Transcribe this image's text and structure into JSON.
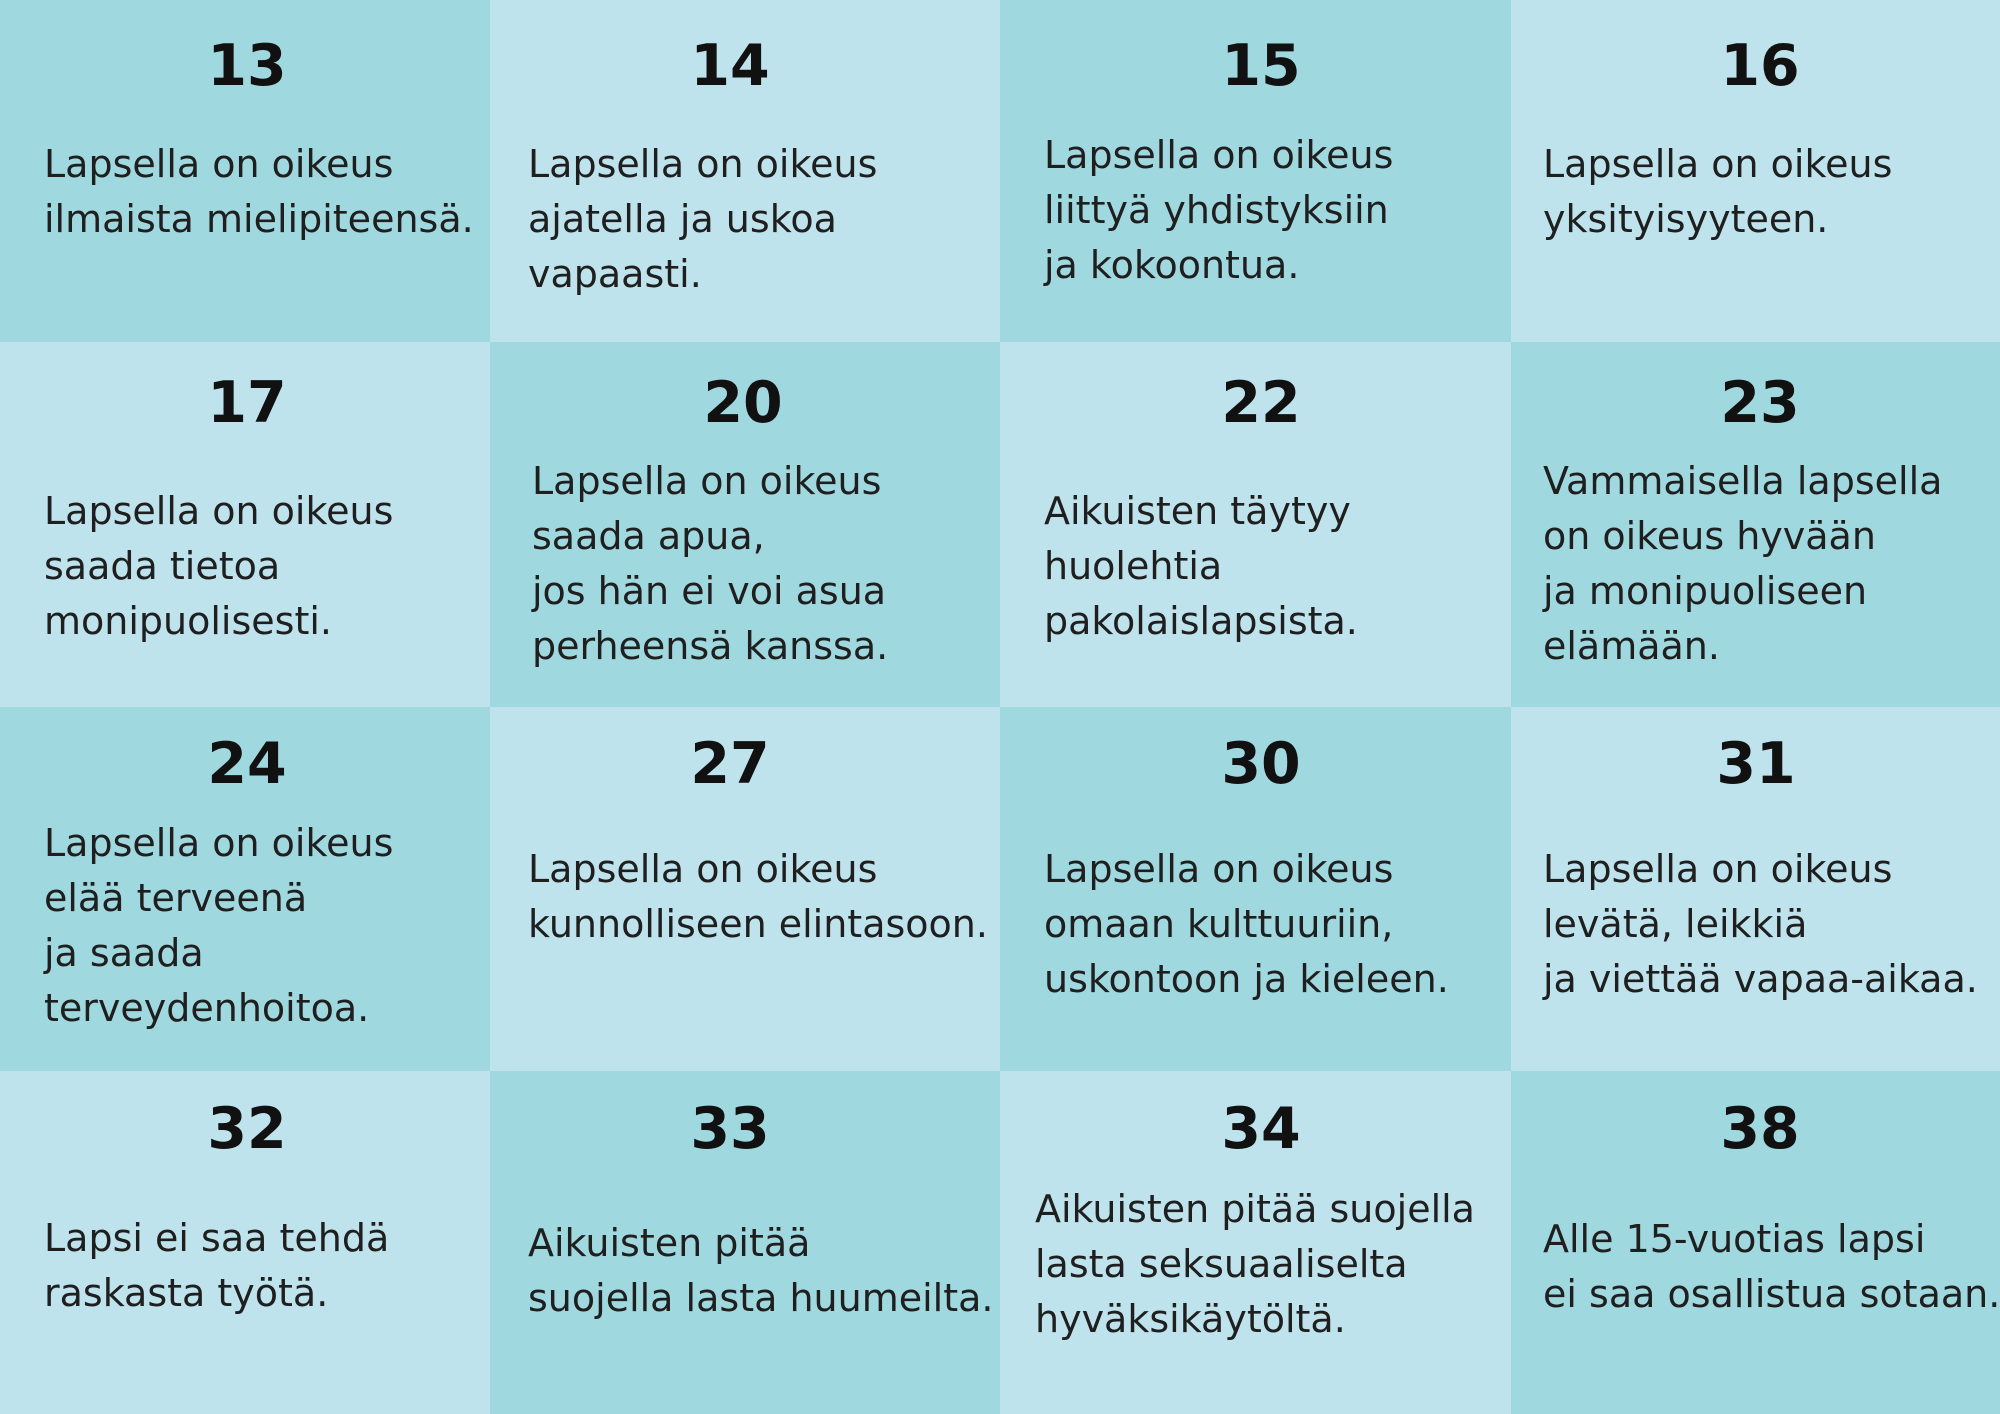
{
  "articles": [
    {
      "number": "13",
      "lines": [
        "Lapsella on oikeus",
        "ilmaista mielipiteensä."
      ]
    },
    {
      "number": "14",
      "lines": [
        "Lapsella on oikeus",
        "ajatella ja uskoa",
        "vapaasti."
      ]
    },
    {
      "number": "15",
      "lines": [
        "Lapsella on oikeus",
        "liittyä yhdistyksiin",
        "ja kokoontua."
      ]
    },
    {
      "number": "16",
      "lines": [
        "Lapsella on oikeus",
        "yksityisyyteen."
      ]
    },
    {
      "number": "17",
      "lines": [
        "Lapsella on oikeus",
        "saada tietoa",
        "monipuolisesti."
      ]
    },
    {
      "number": "20",
      "lines": [
        "Lapsella on oikeus",
        "saada apua,",
        "jos hän ei voi asua",
        "perheensä kanssa."
      ]
    },
    {
      "number": "22",
      "lines": [
        "Aikuisten täytyy",
        "huolehtia",
        "pakolaislapsista."
      ]
    },
    {
      "number": "23",
      "lines": [
        "Vammaisella lapsella",
        "on oikeus hyvään",
        "ja monipuoliseen",
        "elämään."
      ]
    },
    {
      "number": "24",
      "lines": [
        "Lapsella on oikeus",
        "elää terveenä",
        "ja saada",
        "terveydenhoitoa."
      ]
    },
    {
      "number": "27",
      "lines": [
        "Lapsella on oikeus",
        "kunnolliseen elintasoon."
      ]
    },
    {
      "number": "30",
      "lines": [
        "Lapsella on oikeus",
        "omaan kulttuuriin,",
        "uskontoon ja kieleen."
      ]
    },
    {
      "number": "31",
      "lines": [
        "Lapsella on oikeus",
        "levätä, leikkiä",
        "ja viettää vapaa-aikaa."
      ]
    },
    {
      "number": "32",
      "lines": [
        "Lapsi ei saa tehdä",
        "raskasta työtä."
      ]
    },
    {
      "number": "33",
      "lines": [
        "Aikuisten pitää",
        "suojella lasta huumeilta."
      ]
    },
    {
      "number": "34",
      "lines": [
        "Aikuisten pitää suojella",
        "lasta seksuaaliselta",
        "hyväksikäytöltä."
      ]
    },
    {
      "number": "38",
      "lines": [
        "Alle 15-vuotias lapsi",
        "ei saa osallistua sotaan."
      ]
    }
  ]
}
